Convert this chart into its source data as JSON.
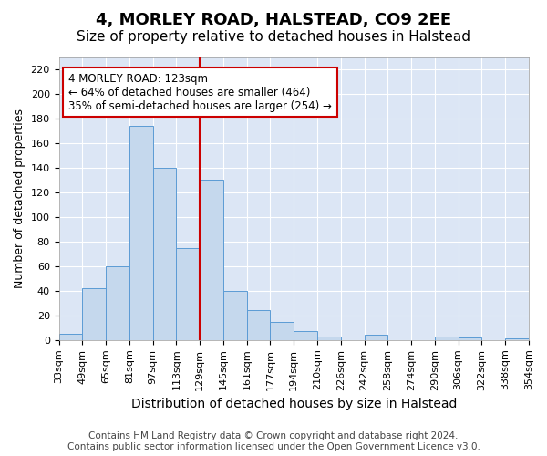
{
  "title": "4, MORLEY ROAD, HALSTEAD, CO9 2EE",
  "subtitle": "Size of property relative to detached houses in Halstead",
  "xlabel": "Distribution of detached houses by size in Halstead",
  "ylabel": "Number of detached properties",
  "bar_color": "#c5d8ed",
  "bar_edge_color": "#5b9bd5",
  "background_color": "#dce6f5",
  "grid_color": "#ffffff",
  "bin_labels": [
    "33sqm",
    "49sqm",
    "65sqm",
    "81sqm",
    "97sqm",
    "113sqm",
    "129sqm",
    "145sqm",
    "161sqm",
    "177sqm",
    "194sqm",
    "210sqm",
    "226sqm",
    "242sqm",
    "258sqm",
    "274sqm",
    "290sqm",
    "306sqm",
    "322sqm",
    "338sqm",
    "354sqm"
  ],
  "values": [
    5,
    42,
    60,
    174,
    140,
    75,
    130,
    40,
    24,
    15,
    7,
    3,
    0,
    4,
    0,
    0,
    3,
    2,
    0,
    1
  ],
  "vline_color": "#cc0000",
  "vline_position": 5.5,
  "annotation_text": "4 MORLEY ROAD: 123sqm\n← 64% of detached houses are smaller (464)\n35% of semi-detached houses are larger (254) →",
  "annotation_box_facecolor": "#ffffff",
  "annotation_box_edgecolor": "#cc0000",
  "ylim": [
    0,
    230
  ],
  "yticks": [
    0,
    20,
    40,
    60,
    80,
    100,
    120,
    140,
    160,
    180,
    200,
    220
  ],
  "footnote": "Contains HM Land Registry data © Crown copyright and database right 2024.\nContains public sector information licensed under the Open Government Licence v3.0.",
  "title_fontsize": 13,
  "subtitle_fontsize": 11,
  "xlabel_fontsize": 10,
  "ylabel_fontsize": 9,
  "tick_fontsize": 8,
  "annotation_fontsize": 8.5,
  "footnote_fontsize": 7.5
}
